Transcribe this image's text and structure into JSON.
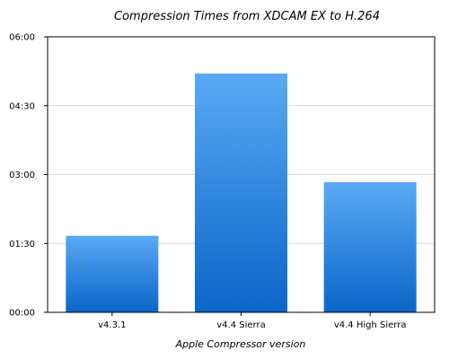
{
  "chart_data": {
    "type": "bar",
    "title": "Compression Times from XDCAM EX to H.264",
    "xlabel": "Apple Compressor version",
    "ylabel": "",
    "categories": [
      "v4.3.1",
      "v4.4 Sierra",
      "v4.4 High Sierra"
    ],
    "values": [
      100,
      312,
      170
    ],
    "value_unit": "seconds",
    "ylim": [
      0,
      360
    ],
    "yticks": [
      0,
      90,
      180,
      270,
      360
    ],
    "ytick_labels": [
      "00:00",
      "01:30",
      "03:00",
      "04:30",
      "06:00"
    ],
    "grid": true,
    "colors": {
      "bar_top": "#5aa9f4",
      "bar_bottom": "#0a66c8",
      "grid": "#d9d9d9",
      "axis": "#000000"
    }
  }
}
